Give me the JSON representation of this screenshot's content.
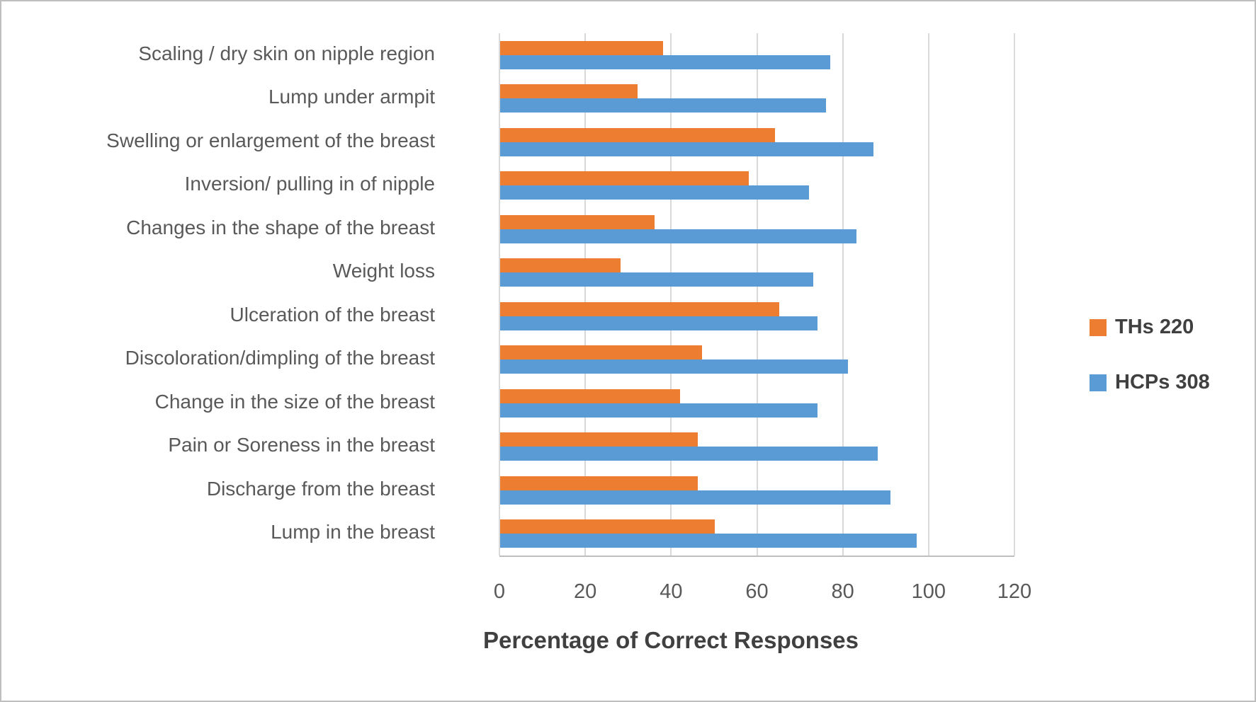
{
  "chart_data": {
    "type": "bar",
    "orientation": "horizontal",
    "title": "",
    "xlabel": "Percentage of Correct Responses",
    "ylabel": "",
    "xlim": [
      0,
      120
    ],
    "x_ticks": [
      0,
      20,
      40,
      60,
      80,
      100,
      120
    ],
    "grid": true,
    "legend_position": "right",
    "categories": [
      "Scaling / dry skin on nipple region",
      "Lump under armpit",
      "Swelling or enlargement of the breast",
      "Inversion/ pulling in of nipple",
      "Changes in the shape of the breast",
      "Weight loss",
      "Ulceration of the breast",
      "Discoloration/dimpling of the breast",
      "Change in the size of the breast",
      "Pain or Soreness in the breast",
      "Discharge from the breast",
      "Lump in the breast"
    ],
    "series": [
      {
        "name": "THs 220",
        "color": "#ED7D31",
        "values": [
          38,
          32,
          64,
          58,
          36,
          28,
          65,
          47,
          42,
          46,
          46,
          50
        ]
      },
      {
        "name": "HCPs 308",
        "color": "#5B9BD5",
        "values": [
          77,
          76,
          87,
          72,
          83,
          73,
          74,
          81,
          74,
          88,
          91,
          97
        ]
      }
    ]
  },
  "colors": {
    "gridline": "#D9D9D9",
    "axis_line": "#BFBFBF",
    "axis_text": "#595959",
    "title_text": "#404040",
    "frame_border": "#BFBFBF"
  }
}
